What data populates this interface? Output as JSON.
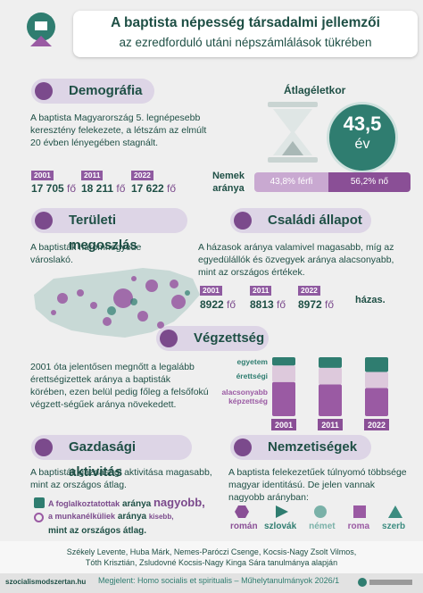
{
  "header": {
    "title": "A baptista népesség társadalmi jellemzői",
    "subtitle": "az ezredforduló utáni népszámlálások tükrében"
  },
  "demography": {
    "heading": "Demográfia",
    "text": "A baptista Magyarország 5. legnépesebb keresztény felekezete, a létszám az elmúlt 20 évben lényegében stagnált.",
    "years": [
      {
        "year": "2001",
        "value": "17 705",
        "unit": "fő"
      },
      {
        "year": "2011",
        "value": "18 211",
        "unit": "fő"
      },
      {
        "year": "2022",
        "value": "17 622",
        "unit": "fő"
      }
    ]
  },
  "age": {
    "heading": "Átlagéletkor",
    "value": "43,5",
    "unit": "év"
  },
  "gender": {
    "label": "Nemek aránya",
    "male": "43,8% férfi",
    "female": "56,2% nő"
  },
  "regional": {
    "heading": "Területi megoszlás",
    "text": "A baptisták háromnegyede városlakó."
  },
  "family": {
    "heading": "Családi állapot",
    "text": "A házasok aránya valamivel magasabb, míg az egyedülállók és özvegyek aránya alacsonyabb, mint az országos értékek.",
    "years": [
      {
        "year": "2001",
        "value": "8922",
        "unit": "fő"
      },
      {
        "year": "2011",
        "value": "8813",
        "unit": "fő"
      },
      {
        "year": "2022",
        "value": "8972",
        "unit": "fő"
      }
    ],
    "suffix": "házas."
  },
  "education": {
    "heading": "Végzettség",
    "text": "2001 óta jelentősen megnőtt a legalább érettségizettek aránya a baptisták körében, ezen belül pedig főleg a felsőfokú végzett-ségűek aránya növekedett.",
    "chart": {
      "type": "bar",
      "stacked": true,
      "categories": [
        "2001",
        "2011",
        "2022"
      ],
      "ylim": [
        0,
        100
      ],
      "series": [
        {
          "name": "egyetem",
          "color": "#2f7d70",
          "values": [
            14,
            18,
            25
          ]
        },
        {
          "name": "érettségi",
          "color": "#ddc9dc",
          "values": [
            28,
            28,
            27
          ]
        },
        {
          "name": "alacsonyabb képzettség",
          "color": "#9a5aa3",
          "values": [
            58,
            54,
            48
          ]
        }
      ]
    }
  },
  "economy": {
    "heading": "Gazdasági aktivitás",
    "text": "A baptisták gazdasági aktivitása magasabb, mint az országos átlag.",
    "line1": [
      "A foglalkoztatottak",
      "aránya",
      "nagyobb,"
    ],
    "line2": [
      "a munkanélküliek",
      "aránya",
      "kisebb,"
    ],
    "line3": "mint az országos átlag."
  },
  "nationality": {
    "heading": "Nemzetiségek",
    "text": "A baptista felekezetűek túlnyomó többsége magyar identitású. De jelen vannak nagyobb arányban:",
    "items": [
      "román",
      "szlovák",
      "német",
      "roma",
      "szerb"
    ]
  },
  "footer": {
    "authors": [
      "Székely Levente, Huba Márk, Nemes-Paróczi Csenge, Kocsis-Nagy Zsolt Vilmos,",
      "Tóth Krisztián, Zsludovné Kocsis-Nagy Kinga Sára tanulmánya alapján"
    ],
    "url": "szocialismodszertan.hu",
    "source": "Megjelent: Homo socialis et spiritualis – Műhelytanulmányok 2026/1"
  }
}
